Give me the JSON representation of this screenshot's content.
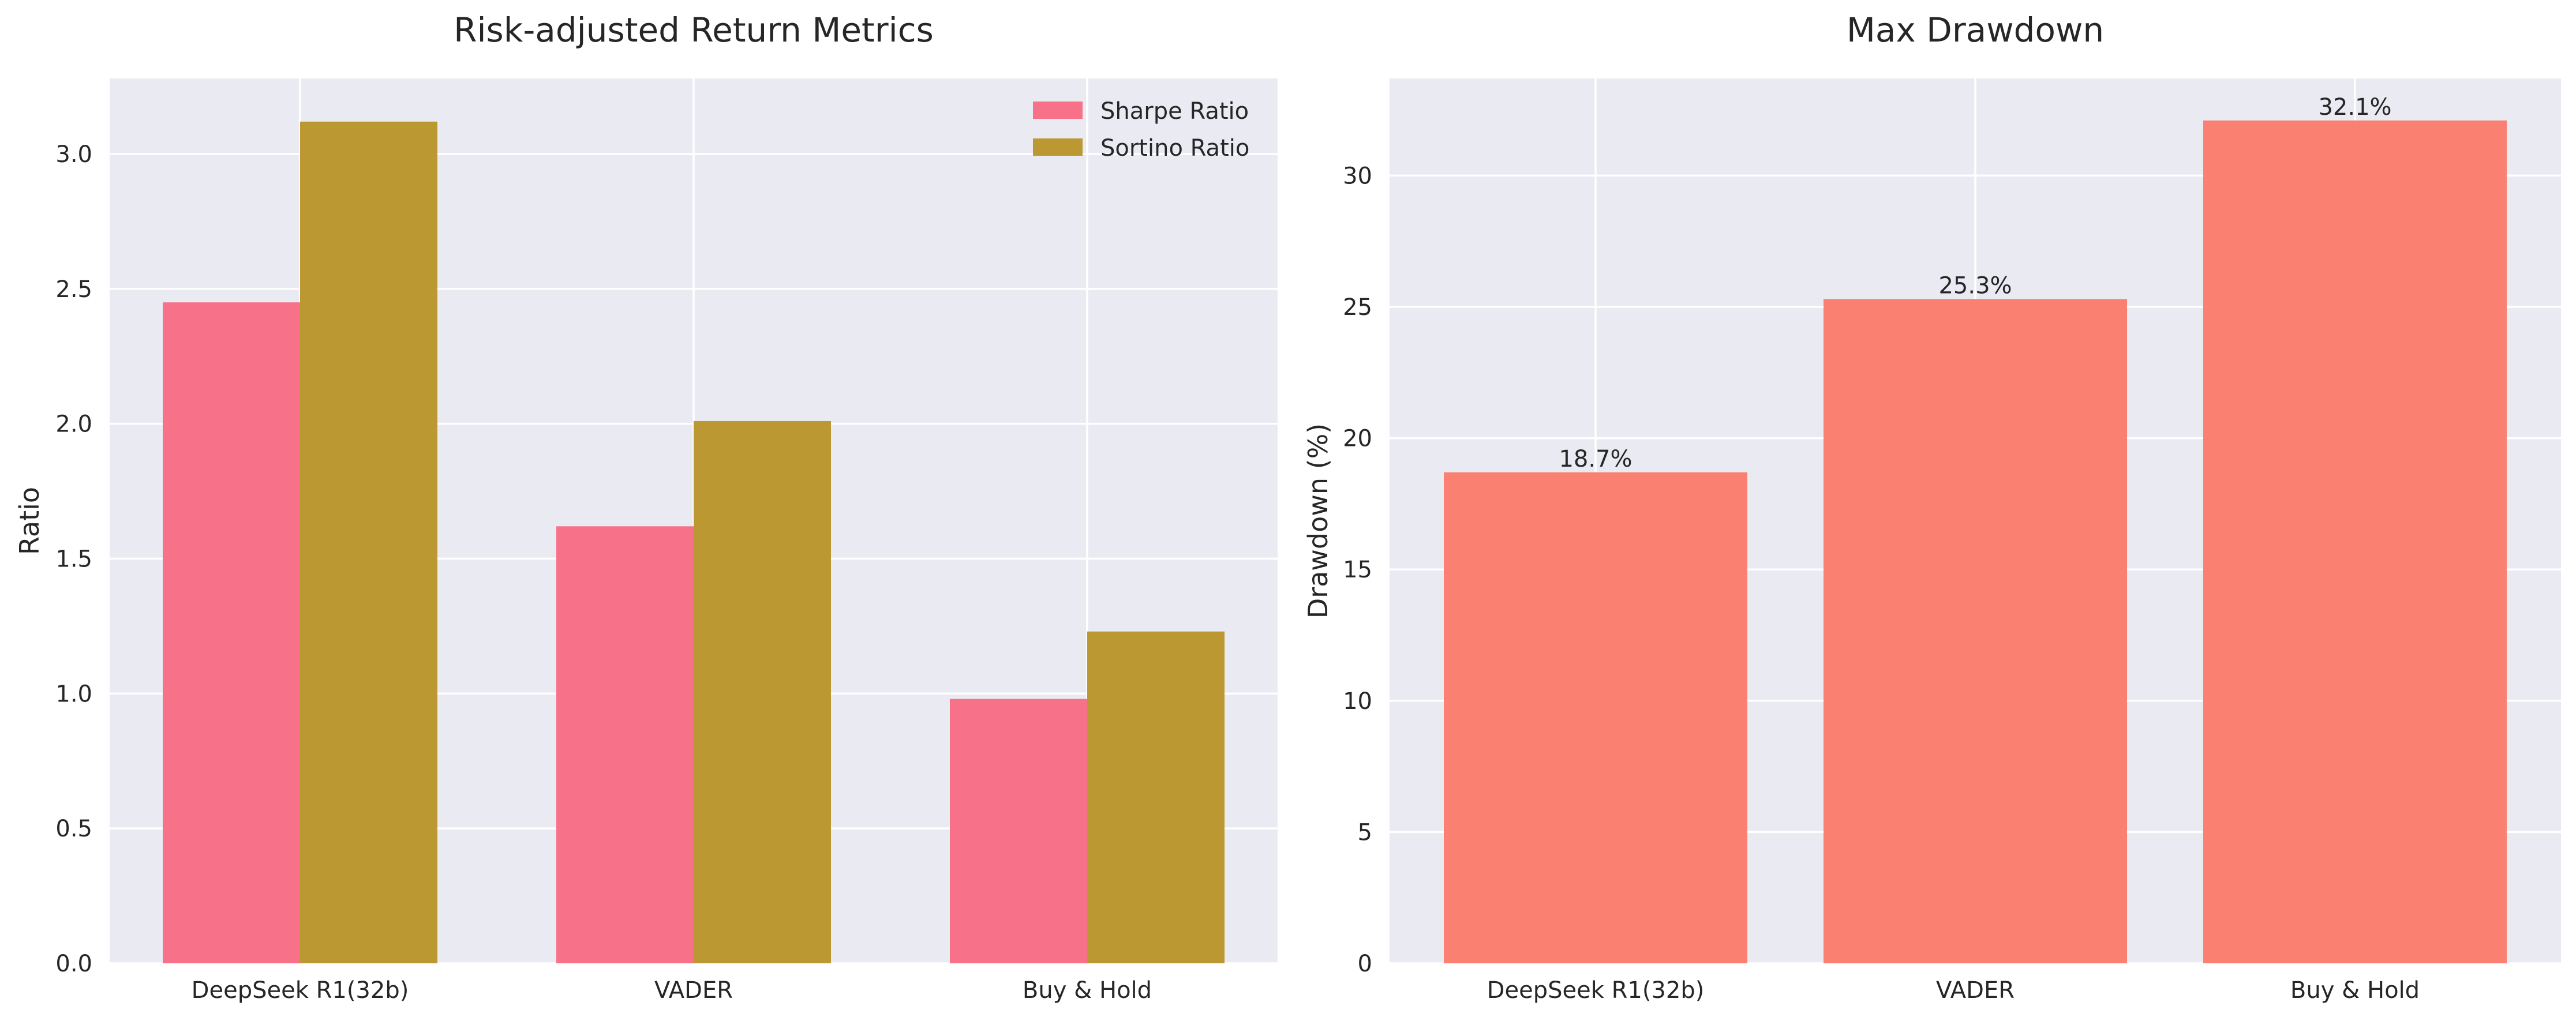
{
  "chart_data": [
    {
      "type": "bar",
      "title": "Risk-adjusted Return Metrics",
      "xlabel": "",
      "ylabel": "Ratio",
      "categories": [
        "DeepSeek R1(32b)",
        "VADER",
        "Buy & Hold"
      ],
      "series": [
        {
          "name": "Sharpe Ratio",
          "values": [
            2.45,
            1.62,
            0.98
          ],
          "color": "#f77189"
        },
        {
          "name": "Sortino Ratio",
          "values": [
            3.12,
            2.01,
            1.23
          ],
          "color": "#bb9832"
        }
      ],
      "ylim": [
        0,
        3.28
      ],
      "yticks": [
        "0.0",
        "0.5",
        "1.0",
        "1.5",
        "2.0",
        "2.5",
        "3.0"
      ],
      "grid": true,
      "legend": "top-right"
    },
    {
      "type": "bar",
      "title": "Max Drawdown",
      "xlabel": "",
      "ylabel": "Drawdown (%)",
      "categories": [
        "DeepSeek R1(32b)",
        "VADER",
        "Buy & Hold"
      ],
      "values": [
        18.7,
        25.3,
        32.1
      ],
      "data_labels": [
        "18.7%",
        "25.3%",
        "32.1%"
      ],
      "color": "#fa8072",
      "ylim": [
        0,
        33.7
      ],
      "yticks": [
        "0",
        "5",
        "10",
        "15",
        "20",
        "25",
        "30"
      ],
      "grid": true
    }
  ],
  "colors": {
    "plot_background": "#eaeaf2",
    "gridline": "#ffffff",
    "text": "#262626"
  }
}
